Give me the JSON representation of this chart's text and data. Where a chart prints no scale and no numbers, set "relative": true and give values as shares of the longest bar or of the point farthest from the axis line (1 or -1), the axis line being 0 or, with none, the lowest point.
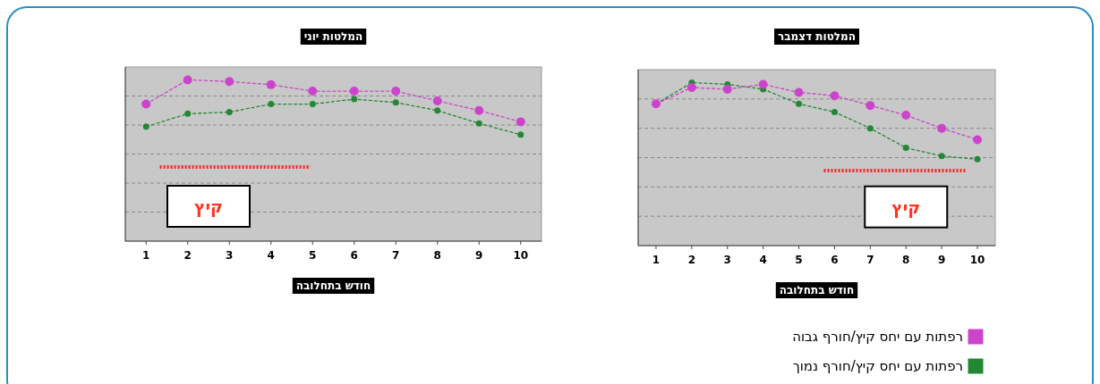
{
  "chart_data": [
    {
      "type": "line",
      "title": "המלטות יוני",
      "xlabel": "חודש בתחלובה",
      "relative": true,
      "x": [
        1,
        2,
        3,
        4,
        5,
        6,
        7,
        8,
        9,
        10
      ],
      "xlim": [
        0.5,
        10.5
      ],
      "xticks": [
        1,
        2,
        3,
        4,
        5,
        6,
        7,
        8,
        9,
        10
      ],
      "grid": "y",
      "marker": "circle",
      "line_style": "dashed",
      "tick_labels": "x",
      "series": [
        {
          "color": "#cc44cc",
          "values": [
            0.85,
            1,
            0.99,
            0.97,
            0.93,
            0.93,
            0.93,
            0.87,
            0.81,
            0.74
          ]
        },
        {
          "color": "#228833",
          "values": [
            0.71,
            0.79,
            0.8,
            0.85,
            0.85,
            0.88,
            0.86,
            0.81,
            0.73,
            0.66
          ]
        },
        {
          "color": "#ff2222",
          "x": [
            1.33,
            4.95
          ],
          "values": [
            0.46,
            0.46
          ],
          "line_style": "dotted",
          "marker": "none"
        }
      ],
      "annotations": [
        "קיץ"
      ]
    },
    {
      "type": "line",
      "title": "המלטות דצמבר",
      "xlabel": "חודש בתחלובה",
      "relative": true,
      "x": [
        1,
        2,
        3,
        4,
        5,
        6,
        7,
        8,
        9,
        10
      ],
      "xlim": [
        0.5,
        10.5
      ],
      "xticks": [
        1,
        2,
        3,
        4,
        5,
        6,
        7,
        8,
        9,
        10
      ],
      "grid": "y",
      "marker": "circle",
      "line_style": "dashed",
      "tick_labels": "x",
      "legend": "bottom right",
      "series": [
        {
          "name": "רפתות עם יחס קיץ/חורף גבוה",
          "color": "#cc44cc",
          "values": [
            0.87,
            0.97,
            0.96,
            0.99,
            0.94,
            0.92,
            0.86,
            0.8,
            0.72,
            0.65
          ]
        },
        {
          "name": "רפתות עם יחס קיץ/חורף נמוך",
          "color": "#228833",
          "values": [
            0.87,
            1,
            0.99,
            0.96,
            0.87,
            0.82,
            0.72,
            0.6,
            0.55,
            0.53
          ]
        },
        {
          "color": "#ff2222",
          "x": [
            5.7,
            9.68
          ],
          "values": [
            0.46,
            0.46
          ],
          "line_style": "dotted",
          "marker": "none"
        }
      ],
      "annotations": [
        "קיץ"
      ]
    }
  ]
}
